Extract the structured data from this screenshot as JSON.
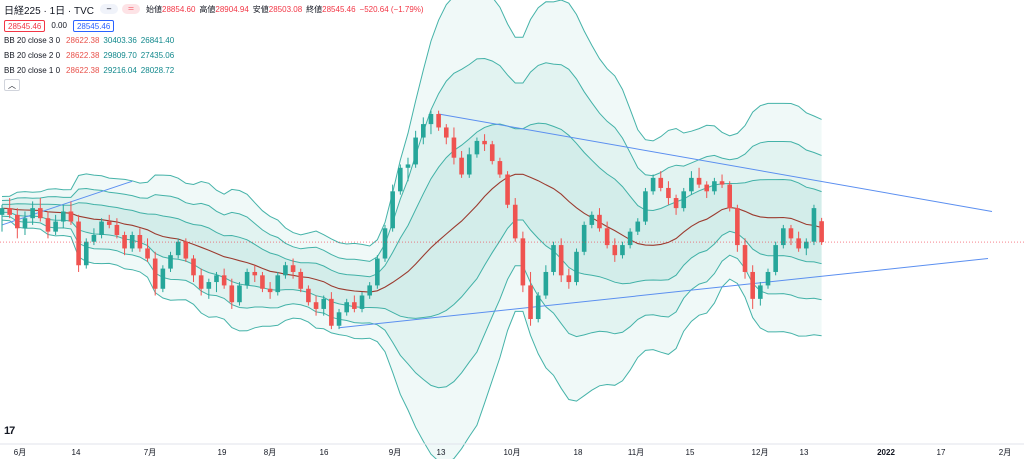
{
  "header": {
    "title": "日経225 · 1日 · TVC",
    "ohlc": [
      {
        "label": "始値",
        "value": "28854.60"
      },
      {
        "label": "高値",
        "value": "28904.94"
      },
      {
        "label": "安値",
        "value": "28503.08"
      },
      {
        "label": "終値",
        "value": "28545.46"
      }
    ],
    "change": "−520.64 (−1.79%)",
    "bid_box": "28545.46",
    "spread": "0.00",
    "ask_box": "28545.46"
  },
  "indicators": [
    {
      "name": "BB 20 close 3 0",
      "mid": "28622.38",
      "upper": "30403.36",
      "lower": "26841.40"
    },
    {
      "name": "BB 20 close 2 0",
      "mid": "28622.38",
      "upper": "29809.70",
      "lower": "27435.06"
    },
    {
      "name": "BB 20 close 1 0",
      "mid": "28622.38",
      "upper": "29216.04",
      "lower": "28028.72"
    }
  ],
  "colors": {
    "up": "#26a69a",
    "down": "#ef5350",
    "basis": "#9b3b2f",
    "band": "#26a69a",
    "trend": "#5b8ff0",
    "price_line": "#f23645"
  },
  "chart_data": {
    "type": "candlestick",
    "x_tick_labels": [
      "6月",
      "14",
      "7月",
      "19",
      "8月",
      "16",
      "9月",
      "13",
      "10月",
      "18",
      "11月",
      "15",
      "12月",
      "13",
      "2022",
      "17",
      "2月"
    ],
    "approx_y_range": [
      25600,
      31700
    ],
    "ohlc": [
      [
        28950,
        29100,
        28700,
        29050
      ],
      [
        29050,
        29200,
        28900,
        28950
      ],
      [
        28950,
        29050,
        28600,
        28750
      ],
      [
        28750,
        29000,
        28650,
        28900
      ],
      [
        28900,
        29150,
        28800,
        29050
      ],
      [
        29050,
        29200,
        28850,
        28900
      ],
      [
        28900,
        29000,
        28600,
        28700
      ],
      [
        28700,
        28950,
        28650,
        28850
      ],
      [
        28850,
        29100,
        28750,
        29000
      ],
      [
        29000,
        29150,
        28800,
        28850
      ],
      [
        28850,
        28950,
        28100,
        28200
      ],
      [
        28200,
        28600,
        28150,
        28550
      ],
      [
        28550,
        28750,
        28500,
        28650
      ],
      [
        28650,
        28900,
        28600,
        28850
      ],
      [
        28850,
        28950,
        28750,
        28800
      ],
      [
        28800,
        28900,
        28600,
        28650
      ],
      [
        28650,
        28700,
        28350,
        28450
      ],
      [
        28450,
        28700,
        28400,
        28650
      ],
      [
        28650,
        28750,
        28400,
        28450
      ],
      [
        28450,
        28600,
        28250,
        28300
      ],
      [
        28300,
        28400,
        27750,
        27850
      ],
      [
        27850,
        28200,
        27800,
        28150
      ],
      [
        28150,
        28400,
        28100,
        28350
      ],
      [
        28350,
        28600,
        28300,
        28550
      ],
      [
        28550,
        28600,
        28250,
        28300
      ],
      [
        28300,
        28350,
        27950,
        28050
      ],
      [
        28050,
        28150,
        27750,
        27850
      ],
      [
        27850,
        28000,
        27700,
        27950
      ],
      [
        27950,
        28100,
        27800,
        28050
      ],
      [
        28050,
        28150,
        27850,
        27900
      ],
      [
        27900,
        28000,
        27550,
        27650
      ],
      [
        27650,
        27950,
        27600,
        27900
      ],
      [
        27900,
        28150,
        27850,
        28100
      ],
      [
        28100,
        28200,
        27950,
        28050
      ],
      [
        28050,
        28100,
        27800,
        27850
      ],
      [
        27850,
        27950,
        27700,
        27800
      ],
      [
        27800,
        28100,
        27750,
        28050
      ],
      [
        28050,
        28250,
        28000,
        28200
      ],
      [
        28200,
        28300,
        28000,
        28100
      ],
      [
        28100,
        28150,
        27800,
        27850
      ],
      [
        27850,
        27900,
        27600,
        27650
      ],
      [
        27650,
        27750,
        27450,
        27550
      ],
      [
        27550,
        27750,
        27450,
        27700
      ],
      [
        27700,
        27800,
        27250,
        27300
      ],
      [
        27300,
        27550,
        27250,
        27500
      ],
      [
        27500,
        27700,
        27450,
        27650
      ],
      [
        27650,
        27750,
        27500,
        27550
      ],
      [
        27550,
        27800,
        27500,
        27750
      ],
      [
        27750,
        27950,
        27700,
        27900
      ],
      [
        27900,
        28350,
        27850,
        28300
      ],
      [
        28300,
        28800,
        28250,
        28750
      ],
      [
        28750,
        29400,
        28700,
        29300
      ],
      [
        29300,
        29700,
        29250,
        29650
      ],
      [
        29650,
        29800,
        29450,
        29700
      ],
      [
        29700,
        30200,
        29650,
        30100
      ],
      [
        30100,
        30400,
        30000,
        30300
      ],
      [
        30300,
        30500,
        30150,
        30450
      ],
      [
        30450,
        30500,
        30200,
        30250
      ],
      [
        30250,
        30300,
        30000,
        30100
      ],
      [
        30100,
        30250,
        29700,
        29800
      ],
      [
        29800,
        29900,
        29500,
        29550
      ],
      [
        29550,
        29950,
        29500,
        29850
      ],
      [
        29850,
        30100,
        29800,
        30050
      ],
      [
        30050,
        30150,
        29900,
        30000
      ],
      [
        30000,
        30050,
        29700,
        29750
      ],
      [
        29750,
        29800,
        29500,
        29550
      ],
      [
        29550,
        29600,
        29050,
        29100
      ],
      [
        29100,
        29200,
        28550,
        28600
      ],
      [
        28600,
        28700,
        27800,
        27900
      ],
      [
        27900,
        28100,
        27300,
        27400
      ],
      [
        27400,
        27800,
        27350,
        27750
      ],
      [
        27750,
        28200,
        27700,
        28100
      ],
      [
        28100,
        28550,
        28050,
        28500
      ],
      [
        28500,
        28600,
        27950,
        28050
      ],
      [
        28050,
        28150,
        27850,
        27950
      ],
      [
        27950,
        28450,
        27900,
        28400
      ],
      [
        28400,
        28850,
        28350,
        28800
      ],
      [
        28800,
        29000,
        28750,
        28950
      ],
      [
        28950,
        29050,
        28700,
        28750
      ],
      [
        28750,
        28850,
        28450,
        28500
      ],
      [
        28500,
        28600,
        28250,
        28350
      ],
      [
        28350,
        28550,
        28300,
        28500
      ],
      [
        28500,
        28750,
        28450,
        28700
      ],
      [
        28700,
        28900,
        28650,
        28850
      ],
      [
        28850,
        29350,
        28800,
        29300
      ],
      [
        29300,
        29550,
        29250,
        29500
      ],
      [
        29500,
        29600,
        29300,
        29350
      ],
      [
        29350,
        29450,
        29100,
        29200
      ],
      [
        29200,
        29250,
        28950,
        29050
      ],
      [
        29050,
        29350,
        29000,
        29300
      ],
      [
        29300,
        29600,
        29250,
        29500
      ],
      [
        29500,
        29650,
        29350,
        29400
      ],
      [
        29400,
        29450,
        29200,
        29300
      ],
      [
        29300,
        29500,
        29250,
        29450
      ],
      [
        29450,
        29550,
        29350,
        29400
      ],
      [
        29400,
        29450,
        29000,
        29050
      ],
      [
        29050,
        29100,
        28400,
        28500
      ],
      [
        28500,
        28600,
        28000,
        28100
      ],
      [
        28100,
        28200,
        27550,
        27700
      ],
      [
        27700,
        27950,
        27600,
        27900
      ],
      [
        27900,
        28150,
        27850,
        28100
      ],
      [
        28100,
        28550,
        28050,
        28500
      ],
      [
        28500,
        28800,
        28450,
        28750
      ],
      [
        28750,
        28800,
        28500,
        28600
      ],
      [
        28600,
        28700,
        28400,
        28450
      ],
      [
        28450,
        28600,
        28350,
        28550
      ],
      [
        28550,
        29100,
        28500,
        29050
      ],
      [
        28855,
        28905,
        28503,
        28545
      ]
    ]
  }
}
